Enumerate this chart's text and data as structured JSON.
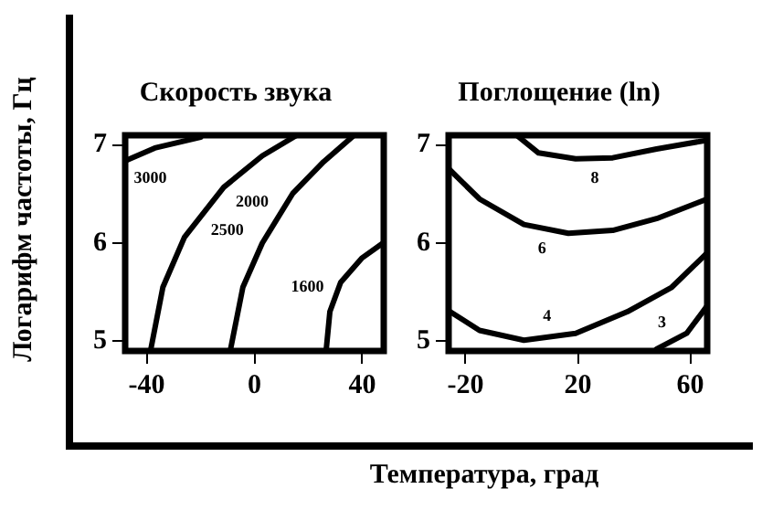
{
  "chart_data": [
    {
      "type": "line",
      "title": "Скорость звука",
      "ylabel": "Логарифм частоты, Гц",
      "xlim": [
        -48,
        48
      ],
      "xticks": [
        -40,
        0,
        40
      ],
      "ylim": [
        4.9,
        7.1
      ],
      "yticks": [
        5,
        6,
        7
      ],
      "grid": false,
      "legend": false,
      "marker": "none",
      "line_style": "solid",
      "series": [
        {
          "name": "3000",
          "color": "#000000",
          "x": [
            -48,
            -37,
            -20
          ],
          "values": [
            6.84,
            6.97,
            7.08
          ]
        },
        {
          "name": "2500",
          "color": "#000000",
          "x": [
            -38.6,
            -34,
            -26,
            -11.4,
            2.9,
            15.7
          ],
          "values": [
            4.9,
            5.55,
            6.06,
            6.57,
            6.89,
            7.1
          ]
        },
        {
          "name": "2000",
          "color": "#000000",
          "x": [
            -9,
            -4.3,
            2.9,
            14.3,
            25.7,
            37
          ],
          "values": [
            4.9,
            5.55,
            6.0,
            6.51,
            6.83,
            7.1
          ]
        },
        {
          "name": "1600",
          "color": "#000000",
          "x": [
            26.6,
            28,
            32,
            40,
            47.7
          ],
          "values": [
            4.9,
            5.3,
            5.6,
            5.85,
            6.0
          ]
        }
      ]
    },
    {
      "type": "line",
      "title": "Поглощение (ln)",
      "xlabel": "Температура, град",
      "xlim": [
        -26,
        66
      ],
      "xticks": [
        -20,
        20,
        60
      ],
      "ylim": [
        4.9,
        7.1
      ],
      "yticks": [
        5,
        6,
        7
      ],
      "grid": false,
      "legend": false,
      "marker": "none",
      "line_style": "solid",
      "series": [
        {
          "name": "8",
          "color": "#000000",
          "x": [
            -1.8,
            6,
            19.2,
            32.4,
            48,
            66
          ],
          "values": [
            7.1,
            6.92,
            6.86,
            6.87,
            6.96,
            7.05
          ]
        },
        {
          "name": "6",
          "color": "#000000",
          "x": [
            -26,
            -15,
            0.8,
            16.6,
            32.4,
            48,
            66
          ],
          "values": [
            6.76,
            6.45,
            6.19,
            6.1,
            6.13,
            6.25,
            6.45
          ]
        },
        {
          "name": "4",
          "color": "#000000",
          "x": [
            -26,
            -15,
            0.8,
            19.2,
            37.6,
            53.4,
            66
          ],
          "values": [
            5.31,
            5.11,
            5.01,
            5.08,
            5.3,
            5.55,
            5.9
          ]
        },
        {
          "name": "3",
          "color": "#000000",
          "x": [
            48,
            58.7,
            66
          ],
          "values": [
            4.92,
            5.08,
            5.36
          ]
        }
      ]
    }
  ]
}
